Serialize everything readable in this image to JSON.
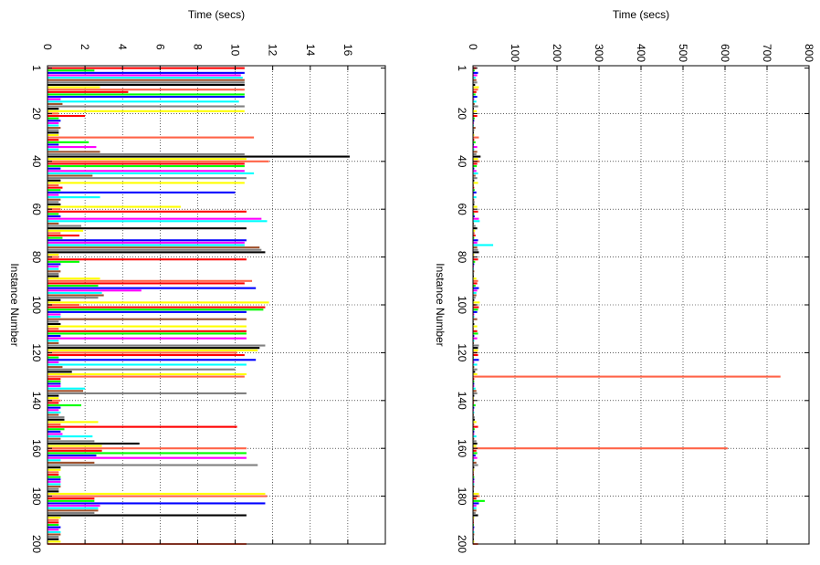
{
  "chart_data": [
    {
      "type": "bar",
      "orientation": "horizontal",
      "ylabel": "Instance Number",
      "xlabel": "Time (secs)",
      "xlabel_position": "top",
      "xlim": [
        0,
        18
      ],
      "x_ticks": [
        "0",
        "2",
        "4",
        "6",
        "8",
        "10",
        "12",
        "14",
        "16"
      ],
      "x_tick_values": [
        0,
        2,
        4,
        6,
        8,
        10,
        12,
        14,
        16
      ],
      "ylim": [
        0,
        200
      ],
      "y_ticks": [
        "1",
        "20",
        "40",
        "60",
        "80",
        "100",
        "120",
        "140",
        "160",
        "180",
        "200"
      ],
      "y_tick_values": [
        1,
        20,
        40,
        60,
        80,
        100,
        120,
        140,
        160,
        180,
        200
      ],
      "grid": true,
      "values": [
        10.5,
        2.5,
        10.5,
        10.3,
        10.4,
        10.5,
        10.5,
        10.5,
        2.8,
        10.5,
        4.3,
        10.5,
        10.5,
        0.7,
        10.2,
        0.8,
        10.5,
        0.6,
        10.5,
        0.6,
        2.0,
        0.6,
        0.7,
        0.6,
        0.6,
        0.7,
        0.6,
        0.6,
        0.6,
        11.0,
        0.6,
        2.2,
        0.6,
        2.6,
        0.6,
        2.8,
        10.5,
        16.1,
        10.6,
        11.8,
        10.5,
        10.5,
        0.7,
        10.5,
        11.0,
        2.4,
        10.6,
        0.7,
        10.5,
        0.6,
        0.8,
        0.7,
        10.0,
        0.6,
        2.8,
        0.7,
        0.6,
        0.7,
        7.1,
        0.7,
        10.6,
        0.6,
        0.7,
        11.4,
        11.7,
        0.6,
        1.8,
        10.6,
        1.9,
        0.7,
        1.7,
        0.8,
        10.6,
        10.5,
        10.5,
        11.3,
        11.4,
        11.6,
        0.6,
        0.6,
        10.6,
        1.7,
        0.7,
        0.6,
        0.6,
        0.7,
        0.6,
        0.6,
        2.8,
        10.9,
        10.5,
        2.7,
        11.1,
        5.0,
        2.9,
        3.0,
        2.7,
        0.7,
        11.8,
        1.7,
        11.6,
        11.5,
        10.6,
        0.7,
        0.7,
        10.6,
        0.6,
        0.7,
        10.6,
        0.6,
        10.6,
        10.6,
        0.7,
        10.6,
        0.6,
        0.6,
        11.6,
        11.3,
        11.2,
        10.1,
        10.5,
        0.6,
        11.1,
        0.6,
        10.6,
        0.8,
        10.0,
        1.3,
        10.6,
        10.5,
        0.7,
        0.7,
        0.7,
        0.7,
        2.0,
        1.9,
        10.6,
        0.6,
        0.6,
        0.7,
        0.6,
        1.8,
        0.7,
        0.6,
        0.7,
        0.6,
        0.9,
        0.9,
        2.7,
        0.7,
        10.1,
        0.9,
        0.7,
        0.8,
        2.4,
        0.7,
        2.5,
        4.9,
        2.9,
        10.6,
        2.9,
        10.6,
        2.6,
        10.6,
        0.7,
        2.5,
        11.2,
        0.7,
        0.7,
        0.6,
        0.6,
        0.7,
        0.7,
        0.7,
        0.7,
        0.7,
        0.6,
        0.6,
        11.6,
        11.7,
        2.5,
        2.5,
        11.6,
        2.8,
        2.7,
        2.7,
        2.5,
        10.6,
        0.7,
        0.6,
        0.6,
        0.6,
        0.7,
        0.6,
        0.7,
        0.7,
        0.6,
        0.6,
        0.7,
        10.6
      ]
    },
    {
      "type": "bar",
      "orientation": "horizontal",
      "ylabel": "Instance Number",
      "xlabel": "Time (secs)",
      "xlabel_position": "top",
      "xlim": [
        0,
        800
      ],
      "x_ticks": [
        "0",
        "100",
        "200",
        "300",
        "400",
        "500",
        "600",
        "700",
        "800"
      ],
      "x_tick_values": [
        0,
        100,
        200,
        300,
        400,
        500,
        600,
        700,
        800
      ],
      "ylim": [
        0,
        200
      ],
      "y_ticks": [
        "1",
        "20",
        "40",
        "60",
        "80",
        "100",
        "120",
        "140",
        "160",
        "180",
        "200"
      ],
      "y_tick_values": [
        1,
        20,
        40,
        60,
        80,
        100,
        120,
        140,
        160,
        180,
        200
      ],
      "grid": true,
      "values": [
        8,
        4,
        12,
        10,
        6,
        8,
        10,
        5,
        14,
        12,
        8,
        6,
        10,
        3,
        8,
        4,
        12,
        2,
        9,
        3,
        10,
        4,
        3,
        2,
        2,
        6,
        3,
        2,
        3,
        14,
        3,
        6,
        2,
        10,
        3,
        10,
        8,
        18,
        12,
        16,
        10,
        9,
        3,
        8,
        12,
        6,
        10,
        3,
        12,
        2,
        3,
        4,
        8,
        2,
        8,
        3,
        4,
        3,
        10,
        3,
        12,
        3,
        4,
        14,
        16,
        2,
        6,
        10,
        5,
        4,
        6,
        3,
        12,
        10,
        48,
        10,
        12,
        14,
        3,
        3,
        12,
        5,
        3,
        2,
        2,
        3,
        2,
        2,
        8,
        12,
        10,
        6,
        14,
        10,
        8,
        8,
        6,
        3,
        16,
        6,
        14,
        12,
        10,
        3,
        3,
        10,
        2,
        3,
        10,
        2,
        10,
        12,
        3,
        10,
        3,
        2,
        14,
        12,
        12,
        10,
        12,
        2,
        14,
        3,
        10,
        3,
        10,
        5,
        10,
        732,
        3,
        3,
        3,
        3,
        6,
        8,
        10,
        3,
        2,
        3,
        2,
        6,
        3,
        2,
        3,
        2,
        4,
        4,
        8,
        3,
        12,
        4,
        3,
        3,
        8,
        3,
        8,
        10,
        8,
        606,
        8,
        10,
        6,
        10,
        3,
        8,
        12,
        3,
        3,
        2,
        2,
        3,
        3,
        3,
        3,
        3,
        2,
        2,
        14,
        16,
        8,
        28,
        14,
        8,
        8,
        8,
        6,
        12,
        3,
        2,
        2,
        2,
        3,
        2,
        3,
        3,
        2,
        2,
        3,
        12
      ]
    }
  ],
  "series_colors": [
    "#ff0000",
    "#00ff00",
    "#0000ff",
    "#ff00ff",
    "#00ffff",
    "#a0522d",
    "#808080",
    "#000000",
    "#ffff00",
    "#ff6347"
  ]
}
